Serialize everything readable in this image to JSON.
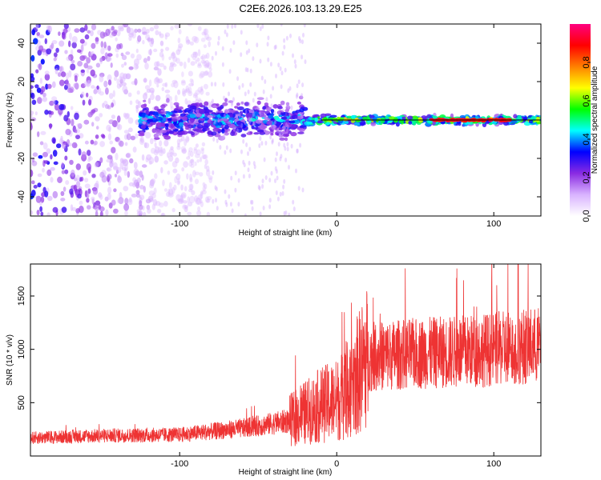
{
  "title": "C2E6.2026.103.13.29.E25",
  "chart_data": [
    {
      "type": "heatmap",
      "xlabel": "Height of straight line (km)",
      "ylabel": "Frequency (Hz)",
      "xlim": [
        -195,
        130
      ],
      "ylim": [
        -50,
        50
      ],
      "xticks": [
        -100,
        0,
        100
      ],
      "xtick_labels": [
        "-100",
        "0",
        "100"
      ],
      "yticks": [
        -40,
        -20,
        0,
        20,
        40
      ],
      "ytick_labels": [
        "-40",
        "-20",
        "0",
        "20",
        "40"
      ],
      "reference_line_y": 0,
      "colorbar": {
        "label": "Normalized spectral amplitude",
        "range": [
          0,
          1
        ],
        "ticks": [
          0,
          0.2,
          0.4,
          0.6,
          0.8
        ],
        "tick_labels": [
          "0.0",
          "0.2",
          "0.4",
          "0.6",
          "0.8"
        ],
        "colors": [
          "#ffffff",
          "#d9b3ff",
          "#8a2be2",
          "#0000ff",
          "#00ffff",
          "#00ff00",
          "#ffff00",
          "#ff8000",
          "#ff0000",
          "#ff0080"
        ]
      },
      "description_bands": [
        {
          "x_range": [
            -195,
            -80
          ],
          "freq_spread": 50,
          "amplitude": 0.12
        },
        {
          "x_range": [
            -125,
            -20
          ],
          "freq_spread": 8,
          "amplitude": 0.3
        },
        {
          "x_range": [
            -20,
            130
          ],
          "freq_spread": 2,
          "amplitude": 0.6
        }
      ]
    },
    {
      "type": "line",
      "series": [
        {
          "name": "SNR",
          "color": "#ee3333"
        }
      ],
      "xlabel": "Height of straight line (km)",
      "ylabel": "SNR (10 * v/v)",
      "xlim": [
        -195,
        130
      ],
      "ylim": [
        0,
        1800
      ],
      "xticks": [
        -100,
        0,
        100
      ],
      "xtick_labels": [
        "-100",
        "0",
        "100"
      ],
      "yticks": [
        500,
        1000,
        1500
      ],
      "ytick_labels": [
        "500",
        "1000",
        "1500"
      ],
      "trend_x": [
        -195,
        -150,
        -100,
        -60,
        -30,
        -10,
        0,
        10,
        20,
        50,
        80,
        100,
        130
      ],
      "trend_y": [
        170,
        190,
        200,
        260,
        330,
        480,
        520,
        680,
        930,
        960,
        980,
        1000,
        1040
      ]
    }
  ]
}
